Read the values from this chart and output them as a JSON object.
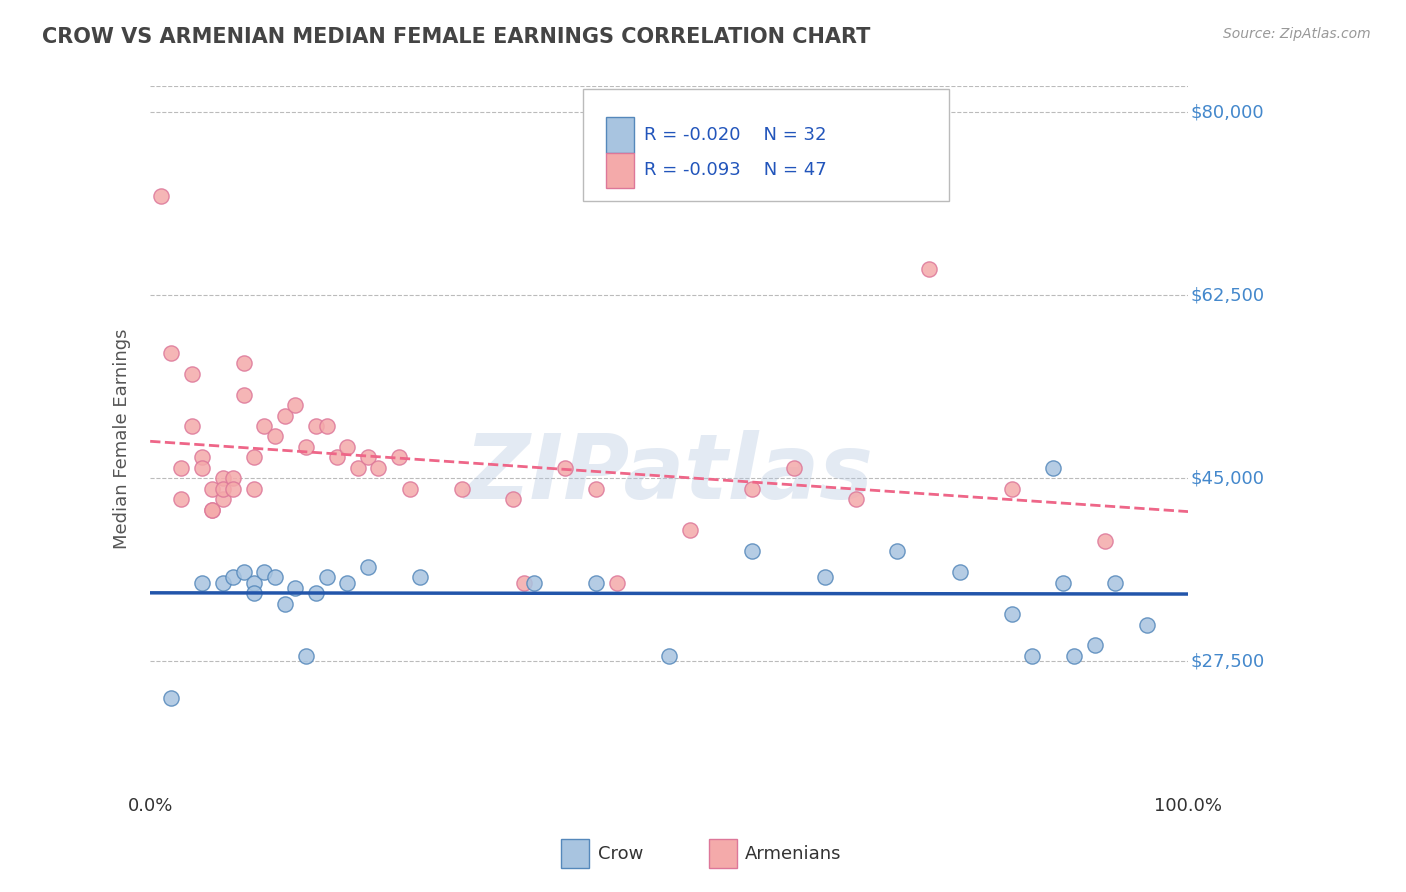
{
  "title": "CROW VS ARMENIAN MEDIAN FEMALE EARNINGS CORRELATION CHART",
  "source": "Source: ZipAtlas.com",
  "ylabel": "Median Female Earnings",
  "xlim": [
    0.0,
    1.0
  ],
  "ylim": [
    15000,
    82500
  ],
  "yticks": [
    27500,
    45000,
    62500,
    80000
  ],
  "ytick_labels": [
    "$27,500",
    "$45,000",
    "$62,500",
    "$80,000"
  ],
  "crow_color": "#A8C4E0",
  "armenian_color": "#F4AAAA",
  "crow_edge_color": "#5588BB",
  "armenian_edge_color": "#DD7799",
  "crow_trend_color": "#2255AA",
  "armenian_trend_color": "#EE6688",
  "crow_R": -0.02,
  "crow_N": 32,
  "armenian_R": -0.093,
  "armenian_N": 47,
  "background_color": "#FFFFFF",
  "grid_color": "#BBBBBB",
  "title_color": "#444444",
  "watermark": "ZIPatlas",
  "crow_x": [
    0.02,
    0.05,
    0.07,
    0.08,
    0.09,
    0.1,
    0.1,
    0.11,
    0.12,
    0.13,
    0.14,
    0.15,
    0.16,
    0.17,
    0.19,
    0.21,
    0.26,
    0.37,
    0.43,
    0.5,
    0.58,
    0.65,
    0.72,
    0.78,
    0.83,
    0.85,
    0.87,
    0.88,
    0.89,
    0.91,
    0.93,
    0.96
  ],
  "crow_y": [
    24000,
    35000,
    35000,
    35500,
    36000,
    35000,
    34000,
    36000,
    35500,
    33000,
    34500,
    28000,
    34000,
    35500,
    35000,
    36500,
    35500,
    35000,
    35000,
    28000,
    38000,
    35500,
    38000,
    36000,
    32000,
    28000,
    46000,
    35000,
    28000,
    29000,
    35000,
    31000
  ],
  "armenian_x": [
    0.01,
    0.02,
    0.03,
    0.03,
    0.04,
    0.04,
    0.05,
    0.05,
    0.06,
    0.06,
    0.06,
    0.07,
    0.07,
    0.07,
    0.08,
    0.08,
    0.09,
    0.09,
    0.1,
    0.1,
    0.11,
    0.12,
    0.13,
    0.14,
    0.15,
    0.16,
    0.17,
    0.18,
    0.19,
    0.2,
    0.21,
    0.22,
    0.24,
    0.25,
    0.3,
    0.35,
    0.36,
    0.4,
    0.43,
    0.45,
    0.52,
    0.58,
    0.62,
    0.68,
    0.75,
    0.83,
    0.92
  ],
  "armenian_y": [
    72000,
    57000,
    46000,
    43000,
    55000,
    50000,
    47000,
    46000,
    44000,
    42000,
    42000,
    45000,
    43000,
    44000,
    45000,
    44000,
    56000,
    53000,
    47000,
    44000,
    50000,
    49000,
    51000,
    52000,
    48000,
    50000,
    50000,
    47000,
    48000,
    46000,
    47000,
    46000,
    47000,
    44000,
    44000,
    43000,
    35000,
    46000,
    44000,
    35000,
    40000,
    44000,
    46000,
    43000,
    65000,
    44000,
    39000
  ]
}
